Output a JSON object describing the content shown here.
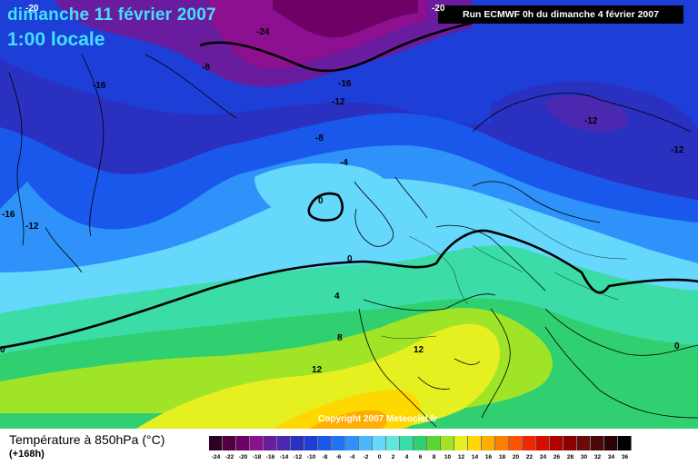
{
  "header": {
    "date_line": "dimanche 11 février 2007",
    "time_line": "1:00 locale",
    "run_info": "Run ECMWF 0h du dimanche 4 février 2007"
  },
  "map": {
    "copyright": "Copyright 2007 Meteociel.fr",
    "contour_labels": [
      {
        "text": "-20",
        "pos": "top-left"
      },
      {
        "text": "-20",
        "pos": "top-center"
      },
      {
        "text": "-24",
        "pos": "greenland-north"
      },
      {
        "text": "-8",
        "pos": "greenland-west"
      },
      {
        "text": "-16",
        "pos": "greenland-southwest"
      },
      {
        "text": "-16",
        "pos": "greenland-east"
      },
      {
        "text": "-12",
        "pos": "iceland-west"
      },
      {
        "text": "-8",
        "pos": "iceland"
      },
      {
        "text": "-4",
        "pos": "north-atlantic"
      },
      {
        "text": "0",
        "pos": "mid-atlantic-cell"
      },
      {
        "text": "-12",
        "pos": "scandinavia"
      },
      {
        "text": "-12",
        "pos": "russia"
      },
      {
        "text": "-16",
        "pos": "left-edge"
      },
      {
        "text": "-12",
        "pos": "canada-east"
      },
      {
        "text": "0",
        "pos": "bay-of-biscay"
      },
      {
        "text": "0",
        "pos": "left-edge-south"
      },
      {
        "text": "4",
        "pos": "atlantic-south"
      },
      {
        "text": "8",
        "pos": "iberia-west"
      },
      {
        "text": "12",
        "pos": "western-mediterranean"
      },
      {
        "text": "12",
        "pos": "morocco-coast"
      },
      {
        "text": "0",
        "pos": "black-sea"
      }
    ]
  },
  "footer": {
    "variable_label": "Température à 850hPa (°C)",
    "lead_time": "(+168h)",
    "scale": [
      {
        "label": "-24",
        "color": "#2e0024"
      },
      {
        "label": "-22",
        "color": "#520040"
      },
      {
        "label": "-20",
        "color": "#6e0066"
      },
      {
        "label": "-18",
        "color": "#8c1090"
      },
      {
        "label": "-16",
        "color": "#6a1c9e"
      },
      {
        "label": "-14",
        "color": "#4a28b0"
      },
      {
        "label": "-12",
        "color": "#2a30c0"
      },
      {
        "label": "-10",
        "color": "#1e3ed8"
      },
      {
        "label": "-8",
        "color": "#1a58ec"
      },
      {
        "label": "-6",
        "color": "#1e74f4"
      },
      {
        "label": "-4",
        "color": "#2e92fa"
      },
      {
        "label": "-2",
        "color": "#4ab6fc"
      },
      {
        "label": "0",
        "color": "#66d8fc"
      },
      {
        "label": "2",
        "color": "#5ee8dc"
      },
      {
        "label": "4",
        "color": "#3cdca8"
      },
      {
        "label": "6",
        "color": "#30d070"
      },
      {
        "label": "8",
        "color": "#5ad832"
      },
      {
        "label": "10",
        "color": "#a0e428"
      },
      {
        "label": "12",
        "color": "#e6f020"
      },
      {
        "label": "14",
        "color": "#ffd800"
      },
      {
        "label": "16",
        "color": "#ffae00"
      },
      {
        "label": "18",
        "color": "#ff8000"
      },
      {
        "label": "20",
        "color": "#ff5200"
      },
      {
        "label": "22",
        "color": "#f02800"
      },
      {
        "label": "24",
        "color": "#d80c00"
      },
      {
        "label": "26",
        "color": "#b00000"
      },
      {
        "label": "28",
        "color": "#8c0000"
      },
      {
        "label": "30",
        "color": "#6c0a0a"
      },
      {
        "label": "32",
        "color": "#4a0808"
      },
      {
        "label": "34",
        "color": "#2a0404"
      },
      {
        "label": "36",
        "color": "#000000"
      }
    ]
  }
}
